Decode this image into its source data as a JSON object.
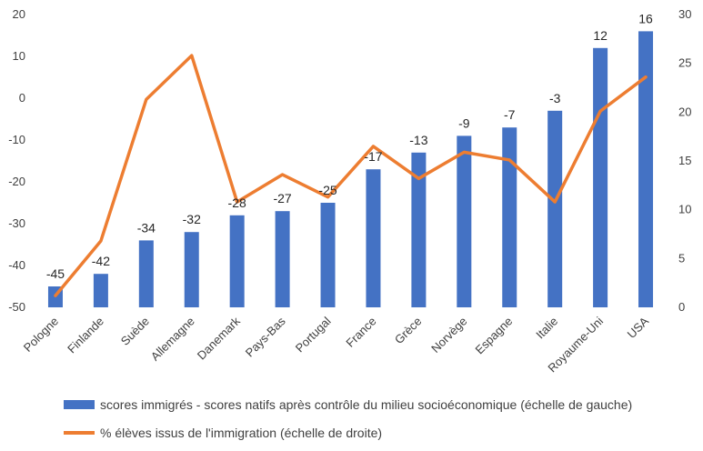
{
  "chart_data": {
    "type": "bar+line",
    "categories": [
      "Pologne",
      "Finlande",
      "Suède",
      "Allemagne",
      "Danemark",
      "Pays-Bas",
      "Portugal",
      "France",
      "Grèce",
      "Norvège",
      "Espagne",
      "Italie",
      "Royaume-Uni",
      "USA"
    ],
    "series": [
      {
        "name": "scores immigrés - scores natifs après contrôle du milieu socioéconomique (échelle de gauche)",
        "type": "bar",
        "axis": "left",
        "color": "#4472C4",
        "values": [
          -45,
          -42,
          -34,
          -32,
          -28,
          -27,
          -25,
          -17,
          -13,
          -9,
          -7,
          -3,
          12,
          16
        ],
        "labels": [
          "-45",
          "-42",
          "-34",
          "-32",
          "-28",
          "-27",
          "-25",
          "-17",
          "-13",
          "-9",
          "-7",
          "-3",
          "12",
          "16"
        ]
      },
      {
        "name": "% élèves issus de l'immigration (échelle de droite)",
        "type": "line",
        "axis": "right",
        "color": "#ED7D31",
        "values": [
          1.2,
          6.8,
          21.3,
          25.8,
          10.8,
          13.6,
          11.3,
          16.5,
          13.2,
          15.9,
          15.1,
          10.8,
          20.1,
          23.6
        ]
      }
    ],
    "y_left": {
      "min": -50,
      "max": 20,
      "ticks": [
        "20",
        "10",
        "0",
        "-10",
        "-20",
        "-30",
        "-40",
        "-50"
      ]
    },
    "y_right": {
      "min": 0,
      "max": 30,
      "ticks": [
        "30",
        "25",
        "20",
        "15",
        "10",
        "5",
        "0"
      ]
    },
    "legend_position": "bottom"
  }
}
